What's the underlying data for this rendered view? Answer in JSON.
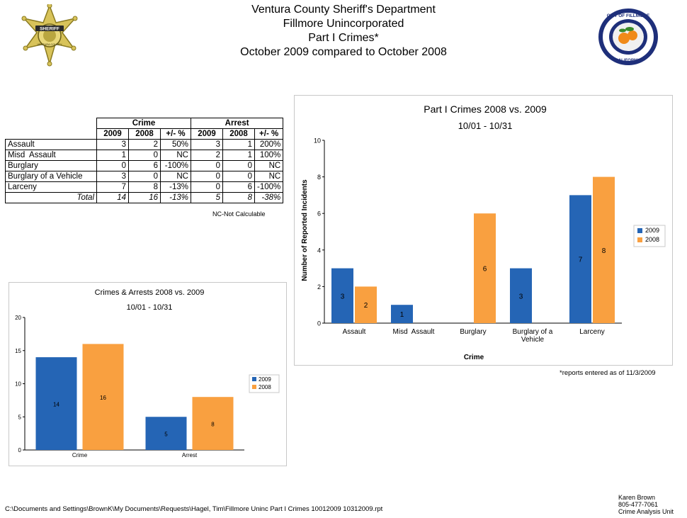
{
  "header": {
    "line1": "Ventura County Sheriff's Department",
    "line2": "Fillmore Unincorporated",
    "line3": "Part I Crimes*",
    "line4": "October 2009 compared to October 2008"
  },
  "badge_left": {
    "text_top": "SHERIFF",
    "text_bottom": "VENTURA COUNTY"
  },
  "seal_right": {
    "text_top": "CITY OF FILLMORE",
    "text_bottom": "CALIFORNIA"
  },
  "table": {
    "group_headers": [
      "Crime",
      "Arrest"
    ],
    "sub_headers": [
      "2009",
      "2008",
      "+/- %",
      "2009",
      "2008",
      "+/- %"
    ],
    "rows": [
      {
        "label": "Assault",
        "cells": [
          "3",
          "2",
          "50%",
          "3",
          "1",
          "200%"
        ]
      },
      {
        "label": "Misd  Assault",
        "cells": [
          "1",
          "0",
          "NC",
          "2",
          "1",
          "100%"
        ]
      },
      {
        "label": "Burglary",
        "cells": [
          "0",
          "6",
          "-100%",
          "0",
          "0",
          "NC"
        ]
      },
      {
        "label": "Burglary of a Vehicle",
        "cells": [
          "3",
          "0",
          "NC",
          "0",
          "0",
          "NC"
        ]
      },
      {
        "label": "Larceny",
        "cells": [
          "7",
          "8",
          "-13%",
          "0",
          "6",
          "-100%"
        ]
      }
    ],
    "total": {
      "label": "Total",
      "cells": [
        "14",
        "16",
        "-13%",
        "5",
        "8",
        "-38%"
      ]
    },
    "note": "NC-Not Calculable"
  },
  "colors": {
    "series_2009": "#2565b5",
    "series_2008": "#f9a040"
  },
  "chart_data": [
    {
      "type": "bar",
      "title": "Part I Crimes 2008 vs. 2009",
      "subtitle": "10/01 - 10/31",
      "xlabel": "Crime",
      "ylabel": "Number of Reported Incidents",
      "categories": [
        "Assault",
        "Misd  Assault",
        "Burglary",
        "Burglary of a Vehicle",
        "Larceny"
      ],
      "series": [
        {
          "name": "2009",
          "values": [
            3,
            1,
            0,
            3,
            7
          ]
        },
        {
          "name": "2008",
          "values": [
            2,
            0,
            6,
            0,
            8
          ]
        }
      ],
      "ylim": [
        0,
        10
      ],
      "yticks": [
        "0",
        "2",
        "4",
        "6",
        "8",
        "10"
      ],
      "legend": "right"
    },
    {
      "type": "bar",
      "title": "Crimes & Arrests 2008 vs. 2009",
      "subtitle": "10/01 - 10/31",
      "categories": [
        "Crime",
        "Arrest"
      ],
      "series": [
        {
          "name": "2009",
          "values": [
            14,
            5
          ]
        },
        {
          "name": "2008",
          "values": [
            16,
            8
          ]
        }
      ],
      "ylim": [
        0,
        20
      ],
      "yticks": [
        "0",
        "5",
        "10",
        "15",
        "20"
      ],
      "legend": "right"
    }
  ],
  "reports_note": "*reports entered as of 11/3/2009",
  "footer": {
    "path": "C:\\Documents and Settings\\BrownK\\My Documents\\Requests\\Hagel, Tim\\Fillmore Uninc Part I Crimes 10012009 10312009.rpt",
    "author": "Karen Brown",
    "phone": "805-477-7061",
    "unit": "Crime Analysis Unit"
  }
}
